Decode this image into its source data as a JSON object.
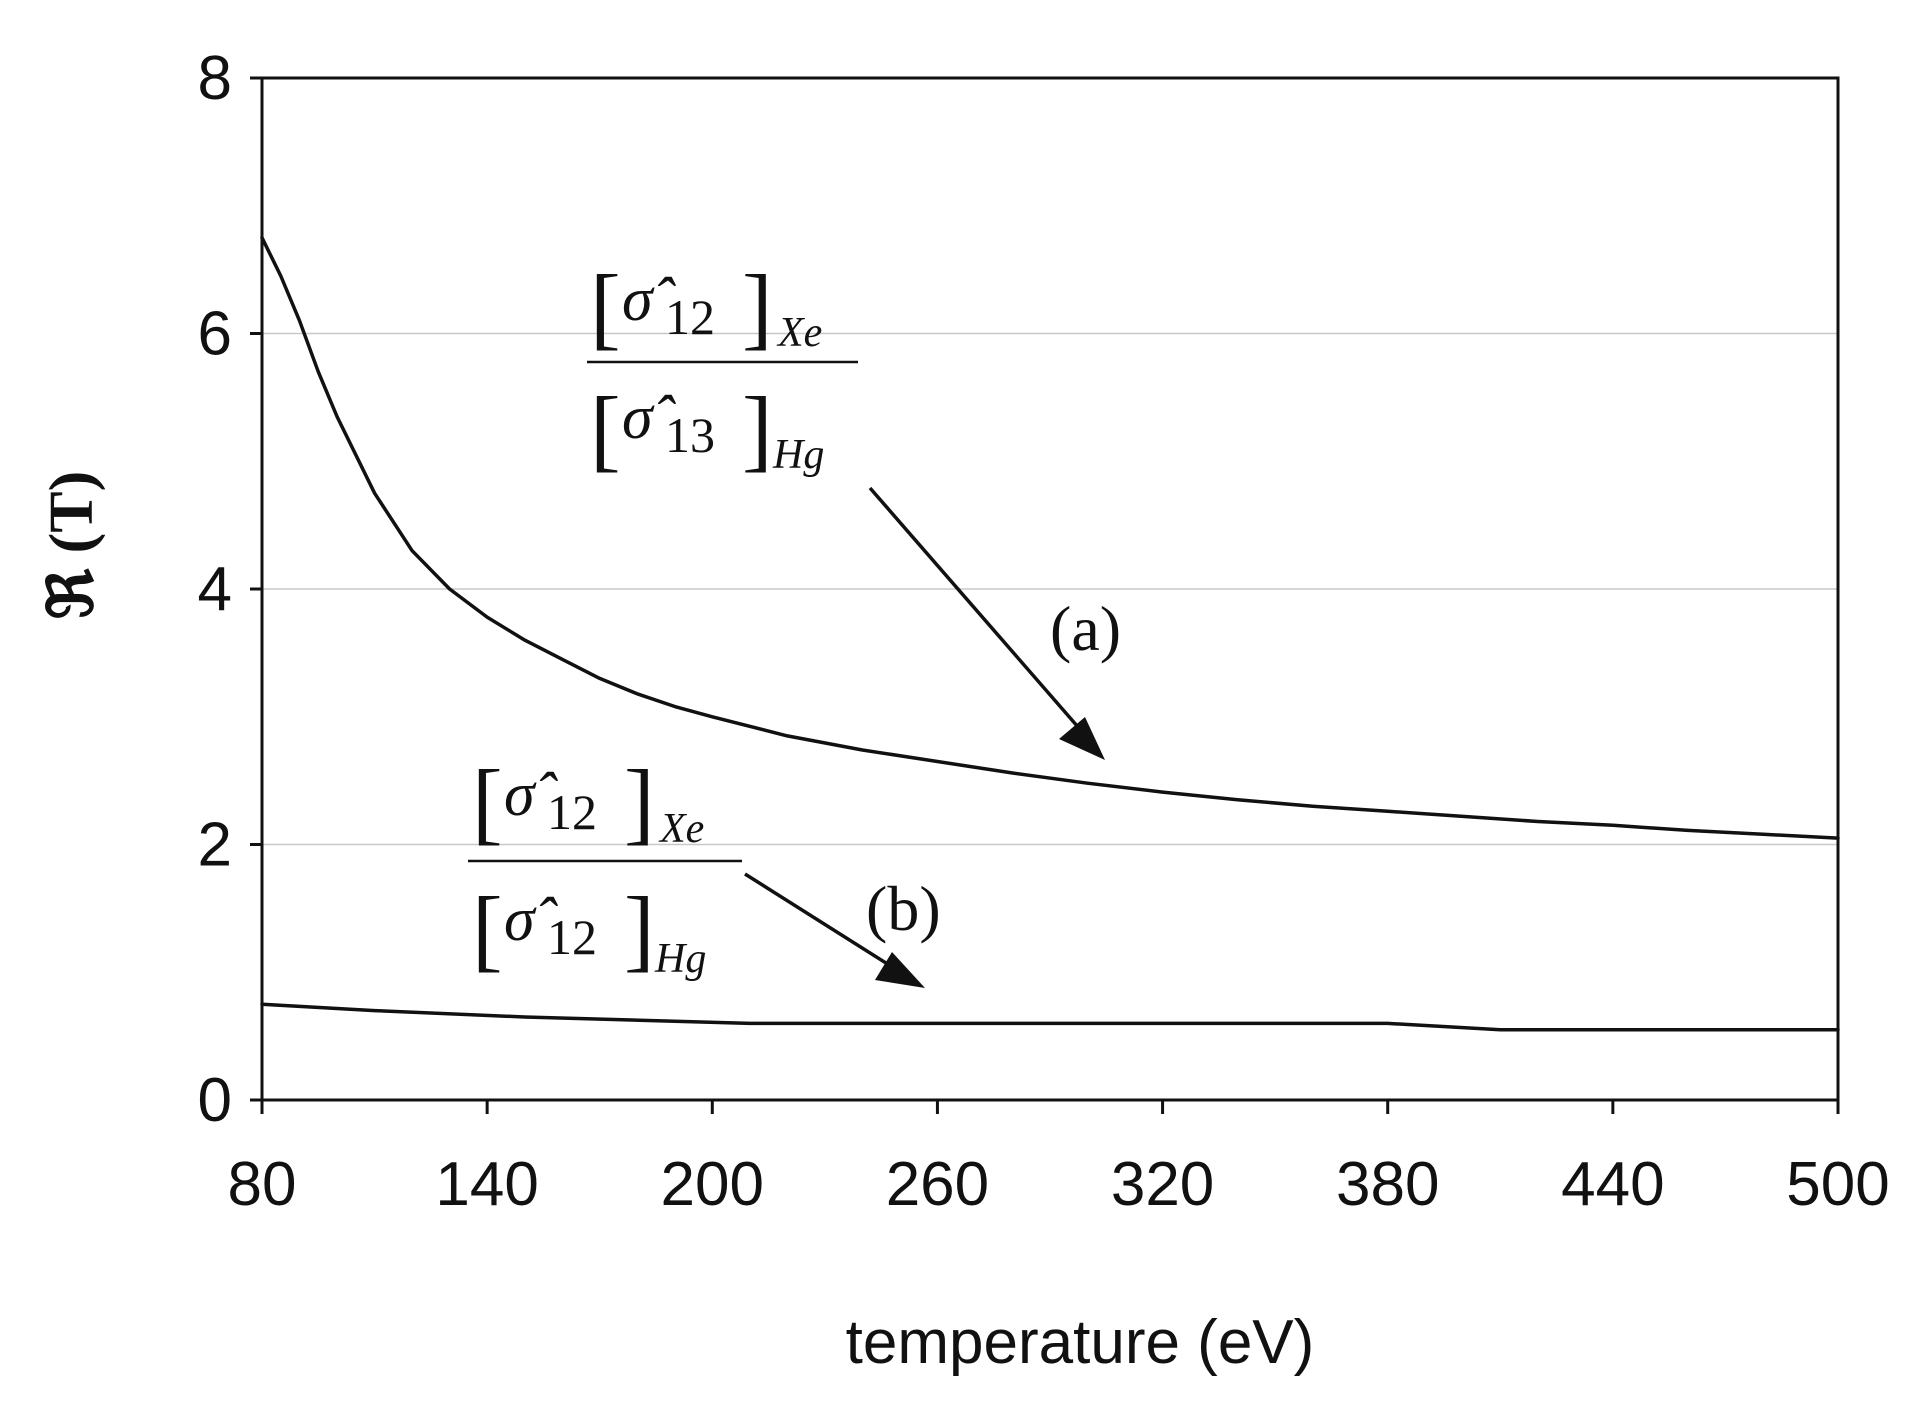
{
  "chart_data": {
    "type": "line",
    "title": "",
    "xlabel": "temperature (eV)",
    "ylabel": "ℜ (T)",
    "xlim": [
      80,
      500
    ],
    "ylim": [
      0,
      8
    ],
    "x_ticks": [
      "80",
      "140",
      "200",
      "260",
      "320",
      "380",
      "440",
      "500"
    ],
    "y_ticks": [
      "0",
      "2",
      "4",
      "6",
      "8"
    ],
    "grid": "horizontal",
    "series": [
      {
        "name": "(a)",
        "ratio_numerator": "[σ̂12]Xe",
        "ratio_denominator": "[σ̂13]Hg",
        "x": [
          80,
          85,
          90,
          95,
          100,
          110,
          120,
          130,
          140,
          150,
          160,
          170,
          180,
          190,
          200,
          220,
          240,
          260,
          280,
          300,
          320,
          340,
          360,
          380,
          400,
          420,
          440,
          460,
          480,
          500
        ],
        "y": [
          6.75,
          6.45,
          6.1,
          5.7,
          5.35,
          4.75,
          4.3,
          4.0,
          3.78,
          3.6,
          3.45,
          3.3,
          3.18,
          3.08,
          3.0,
          2.85,
          2.74,
          2.65,
          2.56,
          2.48,
          2.41,
          2.35,
          2.3,
          2.26,
          2.22,
          2.18,
          2.15,
          2.11,
          2.08,
          2.05
        ]
      },
      {
        "name": "(b)",
        "ratio_numerator": "[σ̂12]Xe",
        "ratio_denominator": "[σ̂12]Hg",
        "x": [
          80,
          110,
          150,
          210,
          260,
          320,
          380,
          410,
          460,
          500
        ],
        "y": [
          0.75,
          0.7,
          0.65,
          0.6,
          0.6,
          0.6,
          0.6,
          0.55,
          0.55,
          0.55
        ]
      }
    ],
    "annotations": {
      "a": {
        "label": "(a)",
        "bracket_open": "[",
        "bracket_close": "]",
        "sigma": "σ̂",
        "num_index": "12",
        "num_element": "Xe",
        "den_index": "13",
        "den_element": "Hg"
      },
      "b": {
        "label": "(b)",
        "bracket_open": "[",
        "bracket_close": "]",
        "sigma": "σ̂",
        "num_index": "12",
        "num_element": "Xe",
        "den_index": "12",
        "den_element": "Hg"
      }
    }
  }
}
